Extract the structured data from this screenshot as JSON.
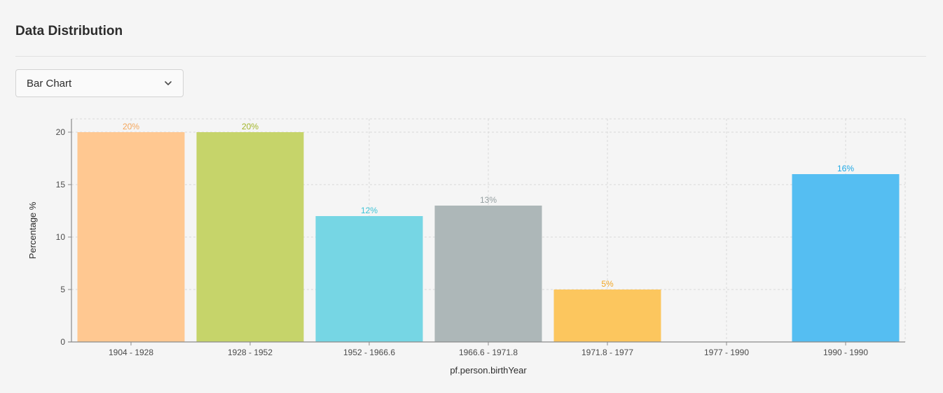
{
  "panel": {
    "title": "Data Distribution"
  },
  "chart_type_select": {
    "value": "Bar Chart",
    "icon": "chevron-down-icon"
  },
  "chart_data": {
    "type": "bar",
    "categories": [
      "1904 - 1928",
      "1928 - 1952",
      "1952 - 1966.6",
      "1966.6 - 1971.8",
      "1971.8 - 1977",
      "1977 - 1990",
      "1990 - 1990"
    ],
    "values": [
      20,
      20,
      12,
      13,
      5,
      0,
      16
    ],
    "labels": [
      "20%",
      "20%",
      "12%",
      "13%",
      "5%",
      "",
      "16%"
    ],
    "colors": [
      "#ffc891",
      "#c6d46a",
      "#76d6e4",
      "#adb7b8",
      "#fcc65e",
      "#cccccc",
      "#55bef2"
    ],
    "label_colors": [
      "#f5a75c",
      "#a2b529",
      "#3dc3d6",
      "#949ea0",
      "#f2a623",
      "#999999",
      "#1ea8e6"
    ],
    "title": "",
    "xlabel": "pf.person.birthYear",
    "ylabel": "Percentage %",
    "ylim": [
      0,
      20
    ],
    "yticks": [
      0,
      5,
      10,
      15,
      20
    ],
    "grid": true
  }
}
